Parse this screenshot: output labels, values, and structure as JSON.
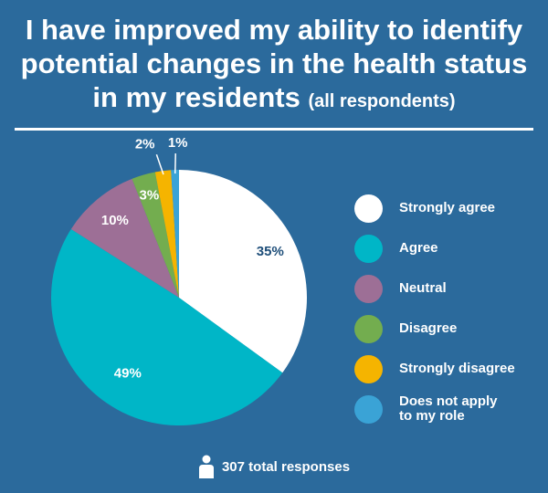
{
  "title": {
    "line1": "I have improved my ability to identify",
    "line2": "potential changes in the health status",
    "line3": "in my residents",
    "note": "(all respondents)"
  },
  "chart_data": {
    "type": "pie",
    "labels": [
      "Strongly agree",
      "Agree",
      "Neutral",
      "Disagree",
      "Strongly disagree",
      "Does not apply to my role"
    ],
    "values": [
      35,
      49,
      10,
      3,
      2,
      1
    ],
    "value_labels": [
      "35%",
      "49%",
      "10%",
      "3%",
      "2%",
      "1%"
    ],
    "colors": [
      "#ffffff",
      "#00b6c7",
      "#9d6f96",
      "#73ad4f",
      "#f5b400",
      "#3aa3d6"
    ],
    "legend_position": "right"
  },
  "legend": [
    {
      "label_lines": [
        "Strongly agree"
      ],
      "color": "#ffffff"
    },
    {
      "label_lines": [
        "Agree"
      ],
      "color": "#00b6c7"
    },
    {
      "label_lines": [
        "Neutral"
      ],
      "color": "#9d6f96"
    },
    {
      "label_lines": [
        "Disagree"
      ],
      "color": "#73ad4f"
    },
    {
      "label_lines": [
        "Strongly disagree"
      ],
      "color": "#f5b400"
    },
    {
      "label_lines": [
        "Does not apply",
        "to my role"
      ],
      "color": "#3aa3d6"
    }
  ],
  "footer": {
    "icon": "person-icon",
    "text": "307 total responses"
  }
}
